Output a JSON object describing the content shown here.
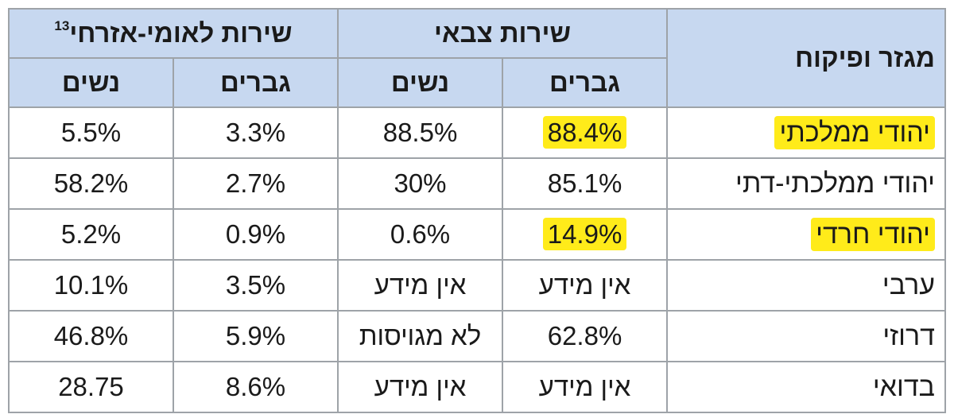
{
  "table": {
    "header": {
      "sector": "מגזר ופיקוח",
      "military": "שירות צבאי",
      "national": "שירות לאומי-אזרחי",
      "national_footnote": "13",
      "men": "גברים",
      "women": "נשים"
    },
    "rows": [
      {
        "sector": "יהודי ממלכתי",
        "mil_men": "88.4%",
        "mil_women": "88.5%",
        "nat_men": "3.3%",
        "nat_women": "5.5%",
        "sector_highlight": true,
        "mil_men_highlight": true
      },
      {
        "sector": "יהודי ממלכתי-דתי",
        "mil_men": "85.1%",
        "mil_women": "30%",
        "nat_men": "2.7%",
        "nat_women": "58.2%",
        "sector_highlight": false,
        "mil_men_highlight": false
      },
      {
        "sector": "יהודי חרדי",
        "mil_men": "14.9%",
        "mil_women": "0.6%",
        "nat_men": "0.9%",
        "nat_women": "5.2%",
        "sector_highlight": true,
        "mil_men_highlight": true
      },
      {
        "sector": "ערבי",
        "mil_men": "אין מידע",
        "mil_women": "אין מידע",
        "nat_men": "3.5%",
        "nat_women": "10.1%",
        "sector_highlight": false,
        "mil_men_highlight": false
      },
      {
        "sector": "דרוזי",
        "mil_men": "62.8%",
        "mil_women": "לא מגויסות",
        "nat_men": "5.9%",
        "nat_women": "46.8%",
        "sector_highlight": false,
        "mil_men_highlight": false
      },
      {
        "sector": "בדואי",
        "mil_men": "אין מידע",
        "mil_women": "אין מידע",
        "nat_men": "8.6%",
        "nat_women": "28.75",
        "sector_highlight": false,
        "mil_men_highlight": false
      }
    ]
  },
  "colors": {
    "header_background": "#c7d8f0",
    "highlight": "#ffeb1a",
    "border": "#9ea3a8"
  }
}
